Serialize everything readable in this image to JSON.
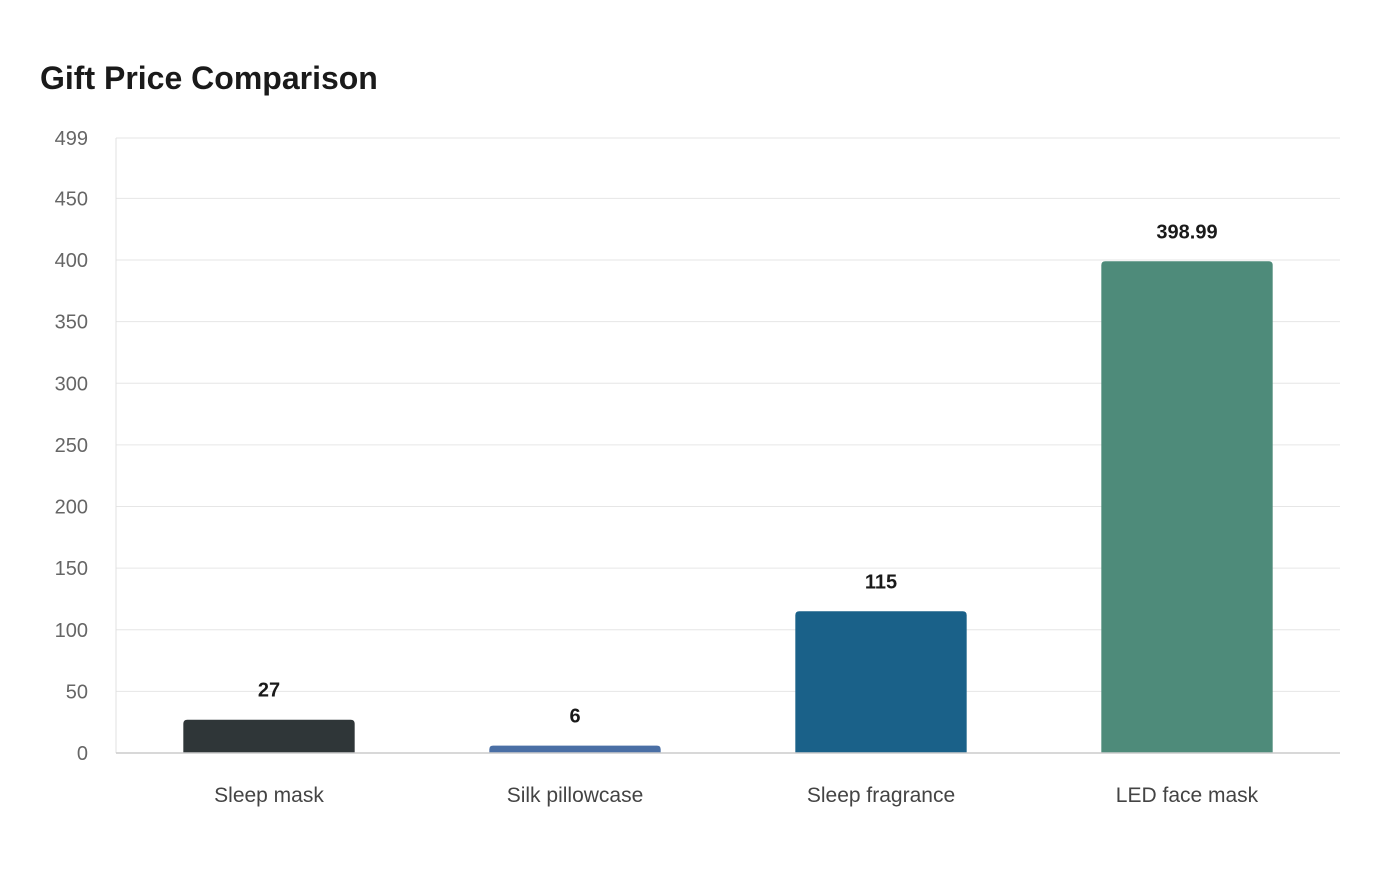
{
  "chart_data": {
    "type": "bar",
    "title": "Gift Price Comparison",
    "xlabel": "",
    "ylabel": "",
    "categories": [
      "Sleep mask",
      "Silk pillowcase",
      "Sleep fragrance",
      "LED face mask"
    ],
    "values": [
      27,
      6,
      115,
      398.99
    ],
    "value_labels": [
      "27",
      "6",
      "115",
      "398.99"
    ],
    "colors": [
      "#2f3638",
      "#4a6fa5",
      "#1a6189",
      "#4e8b7a"
    ],
    "ylim": [
      0,
      499
    ],
    "yticks": [
      0,
      50,
      100,
      150,
      200,
      250,
      300,
      350,
      400,
      450,
      499
    ],
    "grid": true,
    "legend": "none"
  }
}
